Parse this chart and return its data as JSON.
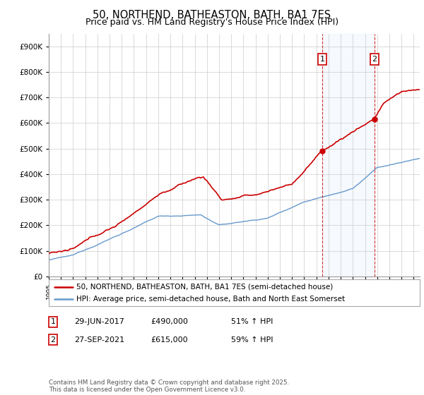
{
  "title": "50, NORTHEND, BATHEASTON, BATH, BA1 7ES",
  "subtitle": "Price paid vs. HM Land Registry's House Price Index (HPI)",
  "red_label": "50, NORTHEND, BATHEASTON, BATH, BA1 7ES (semi-detached house)",
  "blue_label": "HPI: Average price, semi-detached house, Bath and North East Somerset",
  "annotation1_date": "29-JUN-2017",
  "annotation1_price": "£490,000",
  "annotation1_pct": "51% ↑ HPI",
  "annotation2_date": "27-SEP-2021",
  "annotation2_price": "£615,000",
  "annotation2_pct": "59% ↑ HPI",
  "footnote": "Contains HM Land Registry data © Crown copyright and database right 2025.\nThis data is licensed under the Open Government Licence v3.0.",
  "ylim_min": 0,
  "ylim_max": 950000,
  "red_color": "#cc0000",
  "blue_color": "#6699cc",
  "annotation_line_color": "#cc0000",
  "year_start": 1995,
  "year_end": 2025,
  "background_color": "#ffffff",
  "grid_color": "#cccccc",
  "sale1_year": 2017.5,
  "sale1_price": 490000,
  "sale2_year": 2021.75,
  "sale2_price": 615000,
  "yticks": [
    0,
    100000,
    200000,
    300000,
    400000,
    500000,
    600000,
    700000,
    800000,
    900000
  ]
}
